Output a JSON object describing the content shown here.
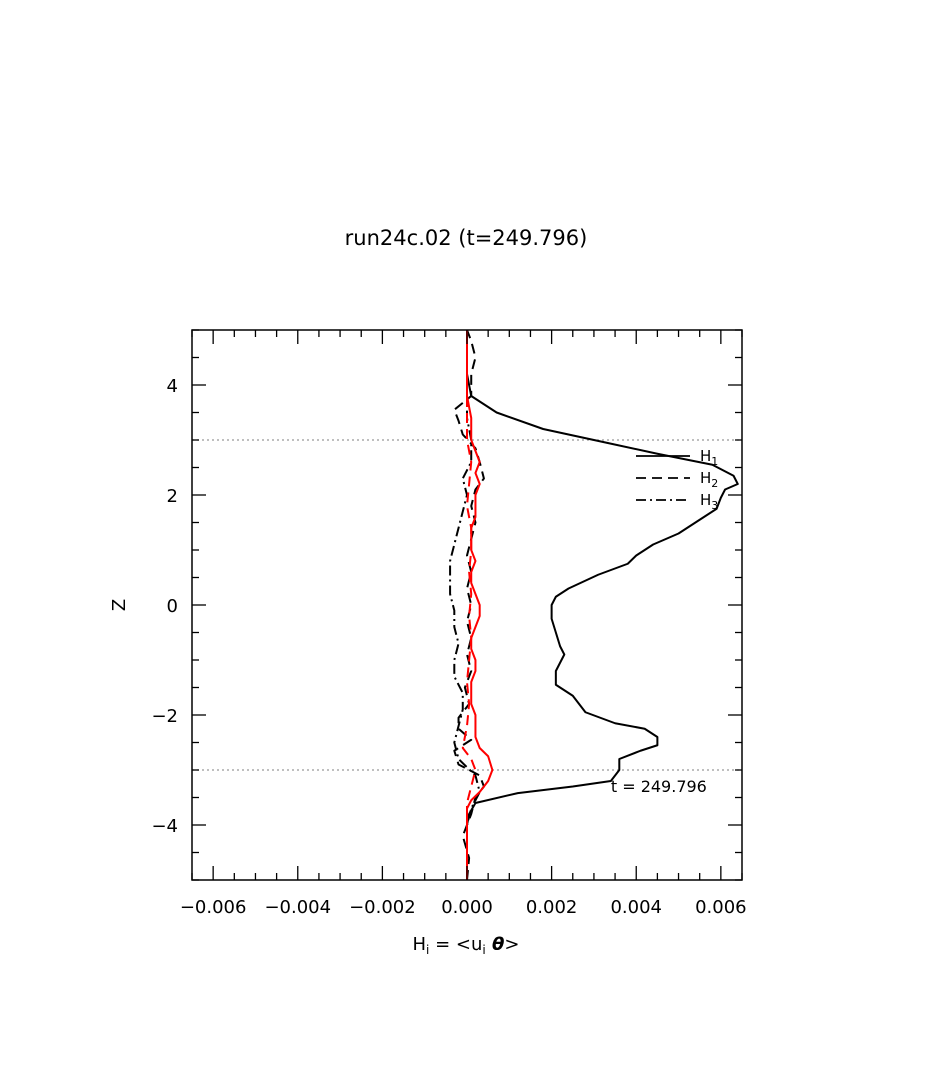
{
  "chart_data": {
    "type": "line",
    "title": "run24c.02 (t=249.796)",
    "xlabel": {
      "main": "H",
      "sub": "i",
      "eq": " = <u",
      "sub2": "i",
      "theta": " θ",
      "tail": ">"
    },
    "ylabel": "Z",
    "xlim": [
      -0.0065,
      0.0065
    ],
    "ylim": [
      -5,
      5
    ],
    "x_ticks": [
      -0.006,
      -0.004,
      -0.002,
      0.0,
      0.002,
      0.004,
      0.006
    ],
    "x_tick_labels": [
      "−0.006",
      "−0.004",
      "−0.002",
      "0.000",
      "0.002",
      "0.004",
      "0.006"
    ],
    "y_ticks": [
      -4,
      -2,
      0,
      2,
      4
    ],
    "y_tick_labels": [
      "−4",
      "−2",
      "0",
      "2",
      "4"
    ],
    "reference_lines": {
      "y": [
        3,
        -3
      ],
      "style": "dotted",
      "color": "#999999"
    },
    "annotation": {
      "text": "t = 249.796",
      "x": 0.0034,
      "y": -3.4
    },
    "legend": {
      "position": "right",
      "entries": [
        {
          "main": "H",
          "sub": "1",
          "style": "solid"
        },
        {
          "main": "H",
          "sub": "2",
          "style": "dashed"
        },
        {
          "main": "H",
          "sub": "3",
          "style": "dashdot"
        }
      ]
    },
    "series": [
      {
        "name": "H1",
        "color": "#000000",
        "style": "solid",
        "points": [
          [
            0.0,
            -5.0
          ],
          [
            0.0,
            -4.5
          ],
          [
            0.0,
            -4.0
          ],
          [
            5e-05,
            -3.8
          ],
          [
            0.0002,
            -3.6
          ],
          [
            0.0012,
            -3.42
          ],
          [
            0.0025,
            -3.3
          ],
          [
            0.0034,
            -3.2
          ],
          [
            0.0036,
            -3.0
          ],
          [
            0.0036,
            -2.8
          ],
          [
            0.0041,
            -2.65
          ],
          [
            0.0045,
            -2.55
          ],
          [
            0.0045,
            -2.4
          ],
          [
            0.0042,
            -2.25
          ],
          [
            0.0035,
            -2.15
          ],
          [
            0.0028,
            -1.95
          ],
          [
            0.0025,
            -1.65
          ],
          [
            0.0021,
            -1.45
          ],
          [
            0.0021,
            -1.2
          ],
          [
            0.0022,
            -1.05
          ],
          [
            0.0023,
            -0.9
          ],
          [
            0.0022,
            -0.75
          ],
          [
            0.0021,
            -0.5
          ],
          [
            0.002,
            -0.25
          ],
          [
            0.002,
            0.0
          ],
          [
            0.0021,
            0.15
          ],
          [
            0.0024,
            0.3
          ],
          [
            0.0031,
            0.55
          ],
          [
            0.0038,
            0.75
          ],
          [
            0.004,
            0.9
          ],
          [
            0.0044,
            1.1
          ],
          [
            0.005,
            1.3
          ],
          [
            0.0055,
            1.55
          ],
          [
            0.0059,
            1.75
          ],
          [
            0.006,
            1.95
          ],
          [
            0.0061,
            2.1
          ],
          [
            0.0064,
            2.2
          ],
          [
            0.0063,
            2.35
          ],
          [
            0.0058,
            2.55
          ],
          [
            0.0045,
            2.75
          ],
          [
            0.0033,
            2.95
          ],
          [
            0.0018,
            3.2
          ],
          [
            0.0007,
            3.5
          ],
          [
            0.0001,
            3.8
          ],
          [
            0.0,
            4.2
          ],
          [
            0.0,
            4.6
          ],
          [
            0.0,
            5.0
          ]
        ]
      },
      {
        "name": "H2",
        "color": "#000000",
        "style": "dashed",
        "points": [
          [
            0.0,
            -5.0
          ],
          [
            5e-05,
            -4.6
          ],
          [
            -0.0001,
            -4.2
          ],
          [
            0.0001,
            -3.8
          ],
          [
            0.0002,
            -3.5
          ],
          [
            0.0004,
            -3.3
          ],
          [
            0.0003,
            -3.1
          ],
          [
            -0.0002,
            -2.9
          ],
          [
            -0.0003,
            -2.65
          ],
          [
            0.0001,
            -2.45
          ],
          [
            -0.0002,
            -2.25
          ],
          [
            -0.0002,
            -2.05
          ],
          [
            5e-05,
            -1.8
          ],
          [
            -5e-05,
            -1.5
          ],
          [
            0.0001,
            -1.2
          ],
          [
            0.0,
            -0.9
          ],
          [
            0.0001,
            -0.6
          ],
          [
            0.0,
            -0.3
          ],
          [
            0.0001,
            0.0
          ],
          [
            0.0,
            0.3
          ],
          [
            0.0001,
            0.6
          ],
          [
            0.0,
            0.9
          ],
          [
            0.0001,
            1.2
          ],
          [
            0.0002,
            1.5
          ],
          [
            0.0001,
            1.8
          ],
          [
            0.0002,
            2.1
          ],
          [
            0.0004,
            2.3
          ],
          [
            0.0003,
            2.6
          ],
          [
            0.0002,
            2.85
          ],
          [
            -0.0001,
            3.1
          ],
          [
            -0.0002,
            3.35
          ],
          [
            -0.0003,
            3.55
          ],
          [
            0.0001,
            3.8
          ],
          [
            0.0001,
            4.2
          ],
          [
            0.0002,
            4.5
          ],
          [
            0.0001,
            4.8
          ],
          [
            0.0,
            5.0
          ]
        ]
      },
      {
        "name": "H3",
        "color": "#000000",
        "style": "dashdot",
        "points": [
          [
            0.0,
            -5.0
          ],
          [
            0.0,
            -4.5
          ],
          [
            0.0,
            -4.0
          ],
          [
            0.0001,
            -3.7
          ],
          [
            0.0003,
            -3.4
          ],
          [
            0.0002,
            -3.1
          ],
          [
            -0.0002,
            -2.8
          ],
          [
            -0.0003,
            -2.5
          ],
          [
            -0.0002,
            -2.2
          ],
          [
            -0.0001,
            -1.9
          ],
          [
            -0.0001,
            -1.6
          ],
          [
            -0.0003,
            -1.3
          ],
          [
            -0.0003,
            -1.0
          ],
          [
            -0.0002,
            -0.7
          ],
          [
            -0.0003,
            -0.4
          ],
          [
            -0.0003,
            -0.1
          ],
          [
            -0.0004,
            0.2
          ],
          [
            -0.0004,
            0.5
          ],
          [
            -0.0004,
            0.8
          ],
          [
            -0.0003,
            1.1
          ],
          [
            -0.0002,
            1.4
          ],
          [
            -0.0001,
            1.7
          ],
          [
            0.0,
            2.0
          ],
          [
            -0.0001,
            2.3
          ],
          [
            0.0001,
            2.6
          ],
          [
            0.0001,
            3.0
          ],
          [
            0.0,
            3.4
          ],
          [
            0.0,
            3.8
          ],
          [
            0.0,
            4.2
          ],
          [
            0.0,
            4.6
          ],
          [
            0.0,
            5.0
          ]
        ]
      },
      {
        "name": "",
        "color": "#ff0000",
        "style": "solid",
        "points": [
          [
            0.0,
            -5.0
          ],
          [
            0.0,
            -4.0
          ],
          [
            0.0,
            -3.7
          ],
          [
            0.0001,
            -3.55
          ],
          [
            0.0003,
            -3.4
          ],
          [
            0.0005,
            -3.2
          ],
          [
            0.0006,
            -3.0
          ],
          [
            0.0005,
            -2.75
          ],
          [
            0.0003,
            -2.6
          ],
          [
            0.0002,
            -2.4
          ],
          [
            0.0002,
            -2.2
          ],
          [
            0.0002,
            -2.0
          ],
          [
            0.0001,
            -1.8
          ],
          [
            0.0001,
            -1.6
          ],
          [
            0.0001,
            -1.4
          ],
          [
            0.0002,
            -1.2
          ],
          [
            0.0002,
            -1.0
          ],
          [
            0.0001,
            -0.8
          ],
          [
            0.0001,
            -0.6
          ],
          [
            0.0002,
            -0.4
          ],
          [
            0.0003,
            -0.2
          ],
          [
            0.0003,
            0.0
          ],
          [
            0.0002,
            0.2
          ],
          [
            0.0001,
            0.4
          ],
          [
            0.0001,
            0.6
          ],
          [
            0.0002,
            0.8
          ],
          [
            0.0001,
            1.0
          ],
          [
            0.0001,
            1.2
          ],
          [
            0.0001,
            1.4
          ],
          [
            0.0002,
            1.6
          ],
          [
            0.0002,
            1.8
          ],
          [
            0.0002,
            2.0
          ],
          [
            0.0003,
            2.2
          ],
          [
            0.0002,
            2.4
          ],
          [
            0.0003,
            2.6
          ],
          [
            0.0002,
            2.8
          ],
          [
            0.0001,
            3.0
          ],
          [
            0.0001,
            3.4
          ],
          [
            0.0,
            3.8
          ],
          [
            0.0,
            4.2
          ],
          [
            0.0,
            5.0
          ]
        ]
      },
      {
        "name": "",
        "color": "#ff0000",
        "style": "dashed",
        "points": [
          [
            0.0,
            -5.0
          ],
          [
            0.0,
            -4.0
          ],
          [
            0.0,
            -3.6
          ],
          [
            0.0001,
            -3.3
          ],
          [
            0.0002,
            -3.0
          ],
          [
            0.0001,
            -2.8
          ],
          [
            -0.0001,
            -2.6
          ],
          [
            -5e-05,
            -2.4
          ],
          [
            0.0,
            -2.2
          ],
          [
            5e-05,
            -1.8
          ],
          [
            0.0,
            -1.4
          ],
          [
            5e-05,
            -1.0
          ],
          [
            0.0001,
            -0.6
          ],
          [
            5e-05,
            -0.2
          ],
          [
            0.0001,
            0.2
          ],
          [
            5e-05,
            0.6
          ],
          [
            0.0001,
            1.0
          ],
          [
            0.0001,
            1.4
          ],
          [
            0.0,
            1.8
          ],
          [
            5e-05,
            2.2
          ],
          [
            0.0001,
            2.6
          ],
          [
            0.0,
            3.0
          ],
          [
            0.0,
            3.4
          ],
          [
            0.0,
            4.0
          ],
          [
            0.0,
            5.0
          ]
        ]
      }
    ]
  }
}
